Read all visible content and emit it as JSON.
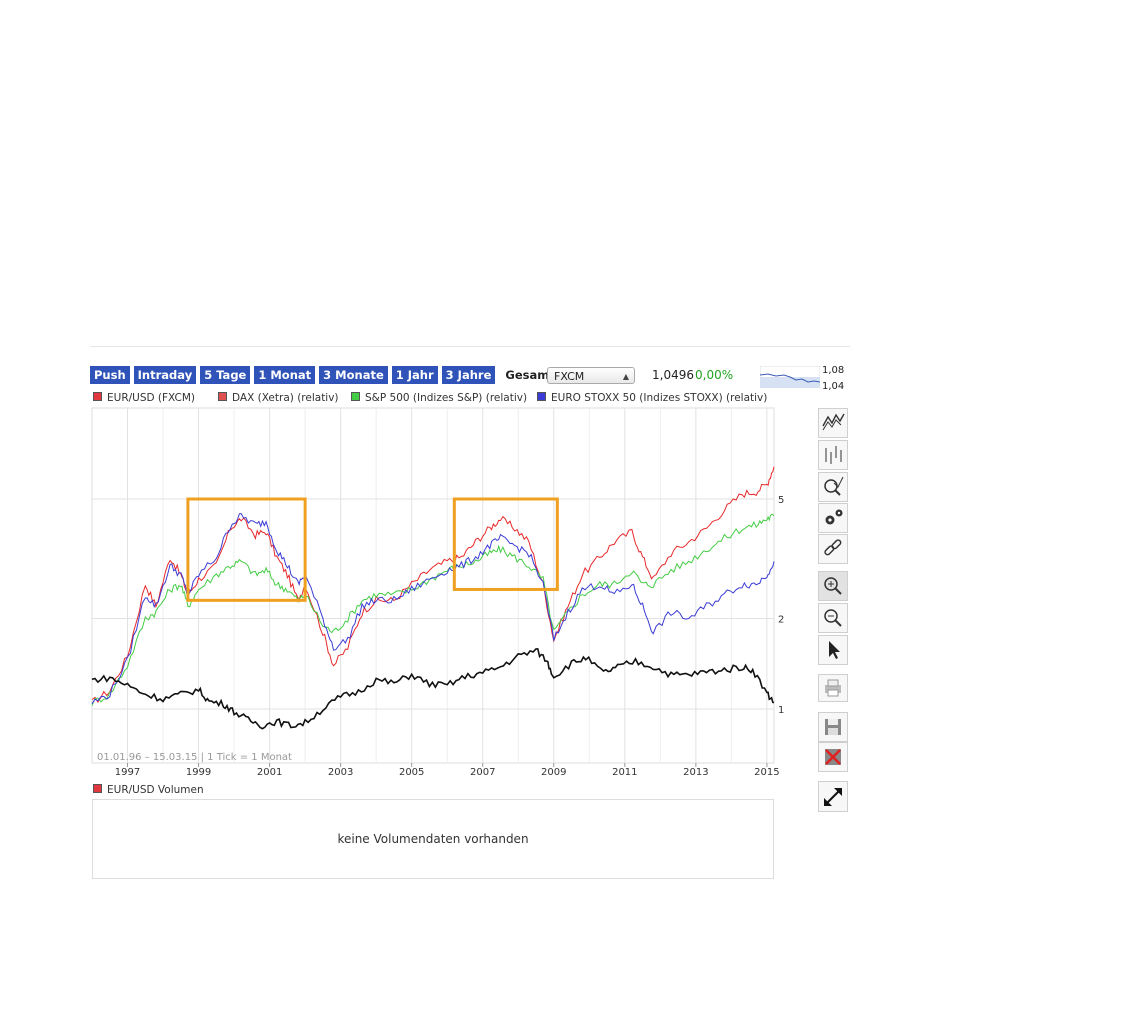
{
  "tabs": [
    {
      "label": "Push",
      "active": false
    },
    {
      "label": "Intraday",
      "active": false
    },
    {
      "label": "5 Tage",
      "active": false
    },
    {
      "label": "1 Monat",
      "active": false
    },
    {
      "label": "3 Monate",
      "active": false
    },
    {
      "label": "1 Jahr",
      "active": false
    },
    {
      "label": "3 Jahre",
      "active": false
    },
    {
      "label": "Gesamt",
      "active": true
    }
  ],
  "exchange": {
    "selected": "FXCM"
  },
  "quote": {
    "price": "1,0496",
    "change": "0,00%",
    "change_color": "#21a321"
  },
  "mini_chart": {
    "high_label": "1,08",
    "low_label": "1,04"
  },
  "legend": [
    {
      "label": "EUR/USD (FXCM)",
      "color": "#e0383e"
    },
    {
      "label": "DAX (Xetra) (relativ)",
      "color": "#e05050"
    },
    {
      "label": "S&P 500 (Indizes S&P) (relativ)",
      "color": "#44cc44"
    },
    {
      "label": "EURO STOXX 50 (Indizes STOXX) (relativ)",
      "color": "#3b3bd6"
    }
  ],
  "range_info": {
    "date_range": "01.01.96 – 15.03.15",
    "interval": "1 Tick = 1 Monat"
  },
  "volume": {
    "legend": "EUR/USD Volumen",
    "legend_color": "#e0383e",
    "message": "keine Volumendaten vorhanden"
  },
  "toolbar": [
    {
      "name": "line-chart-tool-icon",
      "selected": false
    },
    {
      "name": "ohlc-chart-tool-icon",
      "selected": false
    },
    {
      "name": "indicator-search-icon",
      "selected": false
    },
    {
      "name": "settings-gears-icon",
      "selected": false
    },
    {
      "name": "link-icon",
      "selected": false
    },
    {
      "name": "zoom-in-icon",
      "selected": true
    },
    {
      "name": "zoom-out-icon",
      "selected": false
    },
    {
      "name": "pointer-icon",
      "selected": false
    },
    {
      "name": "print-icon",
      "selected": false
    },
    {
      "name": "save-icon",
      "selected": false
    },
    {
      "name": "delete-icon",
      "selected": false
    },
    {
      "name": "fullscreen-icon",
      "selected": false
    }
  ],
  "chart_data": {
    "type": "line",
    "x_range": [
      1996.0,
      2015.2
    ],
    "y_scale": "log",
    "y_ticks": [
      1,
      2,
      5
    ],
    "x_ticks": [
      "1997",
      "1999",
      "2001",
      "2003",
      "2005",
      "2007",
      "2009",
      "2011",
      "2013",
      "2015"
    ],
    "grid": true,
    "highlight_boxes": [
      {
        "x": [
          1998.7,
          2002.0
        ],
        "y": [
          2.3,
          5.0
        ],
        "color": "#f0a020"
      },
      {
        "x": [
          2006.2,
          2009.1
        ],
        "y": [
          2.5,
          5.0
        ],
        "color": "#f0a020"
      }
    ],
    "series": [
      {
        "name": "DAX (Xetra) (relativ)",
        "color": "#e8282a",
        "x": [
          1996.0,
          1996.5,
          1997.0,
          1997.5,
          1997.8,
          1998.2,
          1998.5,
          1998.7,
          1999.0,
          1999.5,
          1999.9,
          2000.2,
          2000.6,
          2000.9,
          2001.2,
          2001.5,
          2001.8,
          2002.0,
          2002.5,
          2002.8,
          2003.2,
          2003.6,
          2004.0,
          2004.5,
          2005.0,
          2005.5,
          2006.0,
          2006.4,
          2006.8,
          2007.2,
          2007.5,
          2007.9,
          2008.3,
          2008.7,
          2009.0,
          2009.4,
          2009.8,
          2010.3,
          2010.7,
          2011.2,
          2011.5,
          2011.8,
          2012.3,
          2012.8,
          2013.3,
          2013.8,
          2014.3,
          2014.7,
          2015.0,
          2015.2
        ],
        "y": [
          1.05,
          1.15,
          1.5,
          2.6,
          2.2,
          3.2,
          2.8,
          2.4,
          2.7,
          3.0,
          4.0,
          4.3,
          3.8,
          3.9,
          3.2,
          2.8,
          2.3,
          2.6,
          1.8,
          1.4,
          1.6,
          2.1,
          2.3,
          2.3,
          2.6,
          2.9,
          3.1,
          3.2,
          3.6,
          4.0,
          4.3,
          4.0,
          3.6,
          2.6,
          1.7,
          2.2,
          2.8,
          3.2,
          3.6,
          3.9,
          3.2,
          2.7,
          3.3,
          3.6,
          4.0,
          4.6,
          5.2,
          5.3,
          5.6,
          6.4
        ]
      },
      {
        "name": "S&P 500 (Indizes S&P) (relativ)",
        "color": "#44cc44",
        "x": [
          1996.0,
          1996.5,
          1997.0,
          1997.5,
          1997.8,
          1998.2,
          1998.5,
          1998.7,
          1999.0,
          1999.5,
          1999.9,
          2000.2,
          2000.6,
          2000.9,
          2001.2,
          2001.5,
          2001.8,
          2002.0,
          2002.5,
          2002.8,
          2003.2,
          2003.6,
          2004.0,
          2004.5,
          2005.0,
          2005.5,
          2006.0,
          2006.4,
          2006.8,
          2007.2,
          2007.5,
          2007.9,
          2008.3,
          2008.7,
          2009.0,
          2009.4,
          2009.8,
          2010.3,
          2010.7,
          2011.2,
          2011.5,
          2011.8,
          2012.3,
          2012.8,
          2013.3,
          2013.8,
          2014.3,
          2014.7,
          2015.0,
          2015.2
        ],
        "y": [
          1.05,
          1.12,
          1.4,
          2.0,
          2.1,
          2.5,
          2.6,
          2.2,
          2.5,
          2.8,
          3.0,
          3.1,
          2.8,
          2.9,
          2.6,
          2.5,
          2.3,
          2.4,
          1.9,
          1.8,
          2.0,
          2.3,
          2.4,
          2.4,
          2.5,
          2.7,
          2.9,
          3.0,
          3.1,
          3.3,
          3.4,
          3.2,
          3.0,
          2.7,
          1.8,
          2.1,
          2.4,
          2.6,
          2.6,
          2.9,
          2.6,
          2.6,
          2.9,
          3.1,
          3.4,
          3.7,
          4.0,
          4.1,
          4.3,
          4.4
        ]
      },
      {
        "name": "EURO STOXX 50 (Indizes STOXX) (relativ)",
        "color": "#3b3bd6",
        "x": [
          1996.0,
          1996.5,
          1997.0,
          1997.5,
          1997.8,
          1998.2,
          1998.5,
          1998.7,
          1999.0,
          1999.5,
          1999.9,
          2000.2,
          2000.6,
          2000.9,
          2001.2,
          2001.5,
          2001.8,
          2002.0,
          2002.5,
          2002.8,
          2003.2,
          2003.6,
          2004.0,
          2004.5,
          2005.0,
          2005.5,
          2006.0,
          2006.4,
          2006.8,
          2007.2,
          2007.5,
          2007.9,
          2008.3,
          2008.7,
          2009.0,
          2009.4,
          2009.8,
          2010.3,
          2010.7,
          2011.2,
          2011.5,
          2011.8,
          2012.3,
          2012.8,
          2013.3,
          2013.8,
          2014.3,
          2014.7,
          2015.0,
          2015.2
        ],
        "y": [
          1.05,
          1.12,
          1.45,
          2.4,
          2.2,
          3.0,
          2.8,
          2.4,
          2.8,
          3.2,
          4.1,
          4.4,
          4.1,
          4.2,
          3.4,
          3.0,
          2.6,
          2.8,
          2.0,
          1.6,
          1.7,
          2.2,
          2.3,
          2.3,
          2.5,
          2.7,
          2.9,
          3.0,
          3.2,
          3.5,
          3.7,
          3.5,
          3.3,
          2.6,
          1.7,
          2.1,
          2.5,
          2.6,
          2.4,
          2.6,
          2.2,
          1.8,
          2.1,
          2.0,
          2.2,
          2.4,
          2.6,
          2.6,
          2.8,
          3.1
        ]
      },
      {
        "name": "EUR/USD (FXCM)",
        "color": "#111111",
        "x": [
          1996.0,
          1996.5,
          1997.0,
          1997.5,
          1998.0,
          1998.5,
          1999.0,
          1999.3,
          1999.7,
          2000.0,
          2000.4,
          2000.8,
          2001.2,
          2001.6,
          2002.0,
          2002.5,
          2003.0,
          2003.5,
          2004.0,
          2004.5,
          2005.0,
          2005.5,
          2006.0,
          2006.5,
          2007.0,
          2007.5,
          2008.0,
          2008.5,
          2008.8,
          2009.0,
          2009.5,
          2009.9,
          2010.4,
          2010.8,
          2011.3,
          2011.8,
          2012.3,
          2012.8,
          2013.3,
          2013.8,
          2014.3,
          2014.6,
          2015.0,
          2015.2
        ],
        "y": [
          1.25,
          1.27,
          1.2,
          1.12,
          1.08,
          1.12,
          1.16,
          1.06,
          1.04,
          0.98,
          0.92,
          0.88,
          0.91,
          0.88,
          0.9,
          1.0,
          1.1,
          1.14,
          1.25,
          1.22,
          1.3,
          1.21,
          1.2,
          1.28,
          1.32,
          1.38,
          1.5,
          1.57,
          1.45,
          1.28,
          1.42,
          1.48,
          1.32,
          1.38,
          1.44,
          1.38,
          1.3,
          1.3,
          1.33,
          1.35,
          1.38,
          1.35,
          1.13,
          1.05
        ]
      }
    ]
  }
}
